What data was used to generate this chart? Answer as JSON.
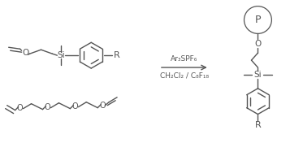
{
  "background_color": "#ffffff",
  "line_color": "#555555",
  "text_color": "#555555",
  "reagent_line1": "Ar₃SPF₆",
  "reagent_line2": "CH₂Cl₂ / C₈F₁₈",
  "polymer_label": "P",
  "figsize": [
    3.57,
    1.76
  ],
  "dpi": 100
}
